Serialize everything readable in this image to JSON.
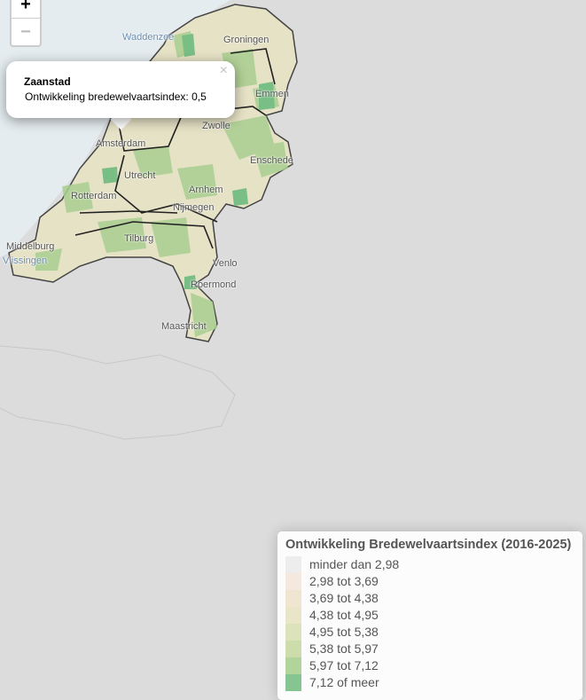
{
  "zoom": {
    "in": "+",
    "out": "−"
  },
  "popup": {
    "close": "×",
    "title": "Zaanstad",
    "text": "Ontwikkeling bredewelvaartsindex: 0,5"
  },
  "map": {
    "labels": [
      "Waddenzee",
      "Groningen",
      "Emmen",
      "Amsterdam",
      "Zwolle",
      "Enschede",
      "Utrecht",
      "Arnhem",
      "Nijmegen",
      "Rotterdam",
      "Middelburg",
      "Vlissingen",
      "Tilburg",
      "Venlo",
      "Roermond",
      "Maastricht"
    ]
  },
  "legend": {
    "title": "Ontwikkeling Bredewelvaartsindex (2016-2025)",
    "items": [
      {
        "label": "minder dan 2,98",
        "color": "#ebebeb"
      },
      {
        "label": "2,98 tot 3,69",
        "color": "#f3e6dc"
      },
      {
        "label": "3,69 tot 4,38",
        "color": "#eee2cc"
      },
      {
        "label": "4,38 tot 4,95",
        "color": "#e5e2c2"
      },
      {
        "label": "4,95 tot 5,38",
        "color": "#d8dfb3"
      },
      {
        "label": "5,38 tot 5,97",
        "color": "#c6d9a2"
      },
      {
        "label": "5,97 tot 7,12",
        "color": "#a9cf90"
      },
      {
        "label": "7,12 of meer",
        "color": "#79bf85"
      }
    ]
  }
}
